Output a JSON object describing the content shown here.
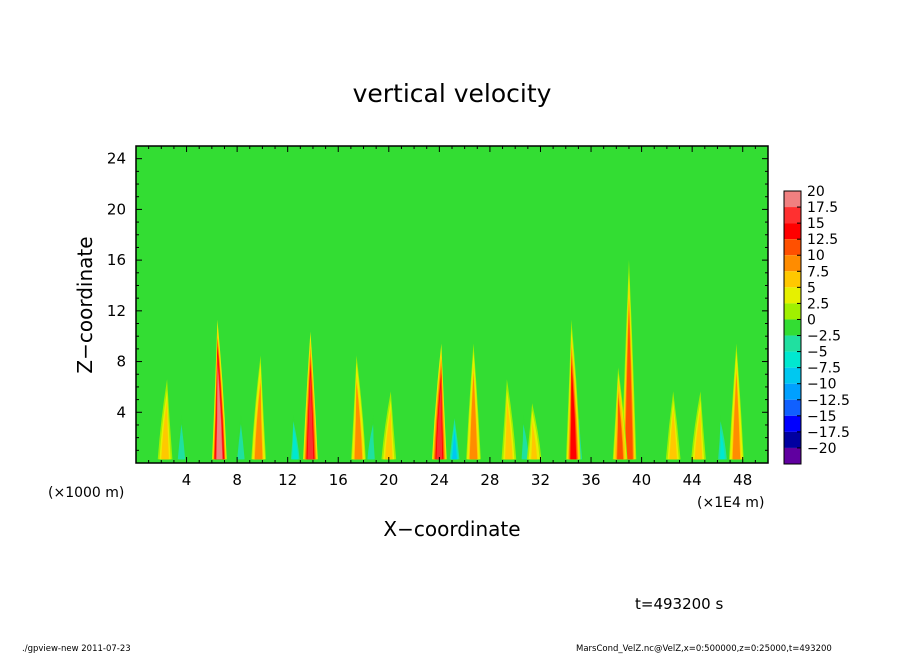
{
  "chart_data": {
    "type": "heatmap",
    "title": "vertical velocity",
    "xlabel": "X−coordinate",
    "ylabel": "Z−coordinate",
    "x_unit_left": "(×1000 m)",
    "x_unit_right": "(×1E4 m)",
    "xlim": [
      0,
      50
    ],
    "ylim": [
      0,
      25
    ],
    "x_ticks": [
      4,
      8,
      12,
      16,
      20,
      24,
      28,
      32,
      36,
      40,
      44,
      48
    ],
    "y_ticks": [
      4,
      8,
      12,
      16,
      20,
      24
    ],
    "x_tick_labels": [
      "4",
      "8",
      "12",
      "16",
      "20",
      "24",
      "28",
      "32",
      "36",
      "40",
      "44",
      "48"
    ],
    "y_tick_labels": [
      "4",
      "8",
      "12",
      "16",
      "20",
      "24"
    ],
    "colorbar": {
      "levels": [
        20,
        17.5,
        15,
        12.5,
        10,
        7.5,
        5,
        2.5,
        0,
        -2.5,
        -5,
        -7.5,
        -10,
        -12.5,
        -15,
        -17.5,
        -20
      ],
      "labels": [
        "20",
        "17.5",
        "15",
        "12.5",
        "10",
        "7.5",
        "5",
        "2.5",
        "0",
        "−2.5",
        "−5",
        "−7.5",
        "−10",
        "−12.5",
        "−15",
        "−17.5",
        "−20"
      ],
      "colors": [
        "#f08080",
        "#ff3030",
        "#ff0000",
        "#ff5000",
        "#ff8c00",
        "#ffc800",
        "#e6f000",
        "#a0f000",
        "#33dd33",
        "#20e0a0",
        "#00e8d0",
        "#00c8f0",
        "#00a0ff",
        "#1060ff",
        "#0000ff",
        "#0000a0",
        "#6000a0"
      ],
      "background_color": "#33dd33"
    },
    "plumes": [
      {
        "x": 6.6,
        "top": 12,
        "amp": 20
      },
      {
        "x": 13.8,
        "top": 11,
        "amp": 16
      },
      {
        "x": 24.0,
        "top": 10,
        "amp": 17
      },
      {
        "x": 34.6,
        "top": 12,
        "amp": 14
      },
      {
        "x": 39.0,
        "top": 17,
        "amp": 12
      },
      {
        "x": 9.7,
        "top": 9,
        "amp": 9
      },
      {
        "x": 17.6,
        "top": 9,
        "amp": 9
      },
      {
        "x": 26.7,
        "top": 10,
        "amp": 9
      },
      {
        "x": 20.0,
        "top": 6,
        "amp": 7
      },
      {
        "x": 29.5,
        "top": 7,
        "amp": 7
      },
      {
        "x": 47.5,
        "top": 10,
        "amp": 9
      },
      {
        "x": 2.3,
        "top": 7,
        "amp": 7
      },
      {
        "x": 38.3,
        "top": 8,
        "amp": 10
      },
      {
        "x": 42.5,
        "top": 6,
        "amp": 6
      },
      {
        "x": 44.5,
        "top": 6,
        "amp": 6
      },
      {
        "x": 31.5,
        "top": 5,
        "amp": 5
      }
    ],
    "downdrafts": [
      {
        "x": 12.6,
        "amp": 7
      },
      {
        "x": 25.2,
        "amp": 9
      },
      {
        "x": 34.9,
        "amp": 8
      },
      {
        "x": 46.4,
        "amp": 6
      },
      {
        "x": 3.6,
        "amp": 5
      },
      {
        "x": 18.6,
        "amp": 5
      },
      {
        "x": 30.8,
        "amp": 5
      },
      {
        "x": 8.3,
        "amp": 4
      }
    ]
  },
  "annotations": {
    "time": "t=493200 s",
    "footer_left": "./gpview-new   2011-07-23",
    "footer_right": "MarsCond_VelZ.nc@VelZ,x=0:500000,z=0:25000,t=493200"
  }
}
